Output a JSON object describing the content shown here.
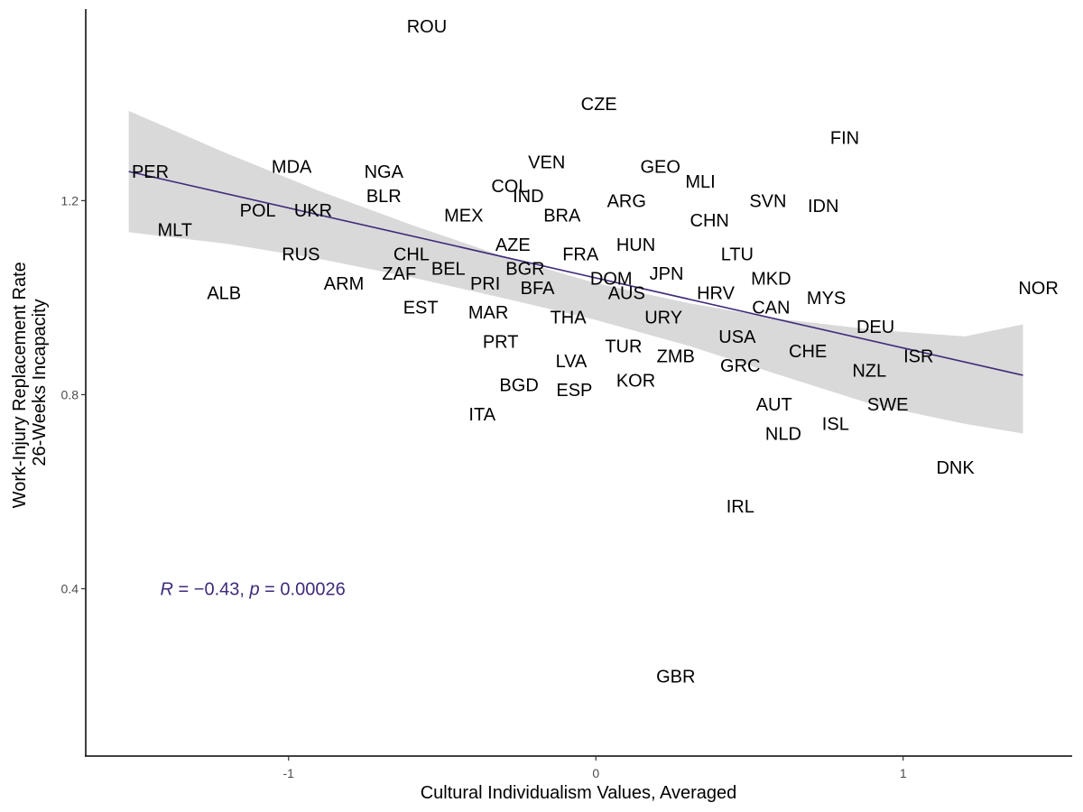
{
  "chart_data": {
    "type": "scatter",
    "xlabel": "Cultural Individualism Values, Averaged",
    "ylabel_lines": [
      "Work-Injury Replacement Rate",
      "26-Weeks Incapacity"
    ],
    "xlim": [
      -1.66,
      1.55
    ],
    "ylim": [
      0.055,
      1.595
    ],
    "xticks": [
      -1,
      0,
      1
    ],
    "xtick_labels": [
      "-1",
      "0",
      "1"
    ],
    "yticks": [
      0.4,
      0.8,
      1.2
    ],
    "ytick_labels": [
      "0.4",
      "0.8",
      "1.2"
    ],
    "grid": false,
    "points": [
      {
        "label": "ROU",
        "x": -0.55,
        "y": 1.56
      },
      {
        "label": "CZE",
        "x": 0.01,
        "y": 1.4
      },
      {
        "label": "FIN",
        "x": 0.81,
        "y": 1.33
      },
      {
        "label": "VEN",
        "x": -0.16,
        "y": 1.28
      },
      {
        "label": "GEO",
        "x": 0.21,
        "y": 1.27
      },
      {
        "label": "MDA",
        "x": -0.99,
        "y": 1.27
      },
      {
        "label": "NGA",
        "x": -0.69,
        "y": 1.26
      },
      {
        "label": "COL",
        "x": -0.28,
        "y": 1.23
      },
      {
        "label": "IND",
        "x": -0.22,
        "y": 1.21
      },
      {
        "label": "ARG",
        "x": 0.1,
        "y": 1.2
      },
      {
        "label": "MLI",
        "x": 0.34,
        "y": 1.24
      },
      {
        "label": "PER",
        "x": -1.45,
        "y": 1.26
      },
      {
        "label": "BLR",
        "x": -0.69,
        "y": 1.21
      },
      {
        "label": "SVN",
        "x": 0.56,
        "y": 1.2
      },
      {
        "label": "MEX",
        "x": -0.43,
        "y": 1.17
      },
      {
        "label": "BRA",
        "x": -0.11,
        "y": 1.17
      },
      {
        "label": "IDN",
        "x": 0.74,
        "y": 1.19
      },
      {
        "label": "POL",
        "x": -1.1,
        "y": 1.18
      },
      {
        "label": "UKR",
        "x": -0.92,
        "y": 1.18
      },
      {
        "label": "CHN",
        "x": 0.37,
        "y": 1.16
      },
      {
        "label": "MLT",
        "x": -1.37,
        "y": 1.14
      },
      {
        "label": "AZE",
        "x": -0.27,
        "y": 1.11
      },
      {
        "label": "HUN",
        "x": 0.13,
        "y": 1.11
      },
      {
        "label": "CHL",
        "x": -0.6,
        "y": 1.09
      },
      {
        "label": "RUS",
        "x": -0.96,
        "y": 1.09
      },
      {
        "label": "FRA",
        "x": -0.05,
        "y": 1.09
      },
      {
        "label": "LTU",
        "x": 0.46,
        "y": 1.09
      },
      {
        "label": "BEL",
        "x": -0.48,
        "y": 1.06
      },
      {
        "label": "BGR",
        "x": -0.23,
        "y": 1.06
      },
      {
        "label": "DOM",
        "x": 0.05,
        "y": 1.04
      },
      {
        "label": "JPN",
        "x": 0.23,
        "y": 1.05
      },
      {
        "label": "MKD",
        "x": 0.57,
        "y": 1.04
      },
      {
        "label": "ZAF",
        "x": -0.64,
        "y": 1.05
      },
      {
        "label": "ARM",
        "x": -0.82,
        "y": 1.03
      },
      {
        "label": "ALB",
        "x": -1.21,
        "y": 1.01
      },
      {
        "label": "PRI",
        "x": -0.36,
        "y": 1.03
      },
      {
        "label": "BFA",
        "x": -0.19,
        "y": 1.02
      },
      {
        "label": "AUS",
        "x": 0.1,
        "y": 1.01
      },
      {
        "label": "HRV",
        "x": 0.39,
        "y": 1.01
      },
      {
        "label": "NOR",
        "x": 1.44,
        "y": 1.02
      },
      {
        "label": "MYS",
        "x": 0.75,
        "y": 1.0
      },
      {
        "label": "EST",
        "x": -0.57,
        "y": 0.98
      },
      {
        "label": "CAN",
        "x": 0.57,
        "y": 0.98
      },
      {
        "label": "MAR",
        "x": -0.35,
        "y": 0.97
      },
      {
        "label": "THA",
        "x": -0.09,
        "y": 0.96
      },
      {
        "label": "URY",
        "x": 0.22,
        "y": 0.96
      },
      {
        "label": "DEU",
        "x": 0.91,
        "y": 0.94
      },
      {
        "label": "USA",
        "x": 0.46,
        "y": 0.92
      },
      {
        "label": "PRT",
        "x": -0.31,
        "y": 0.91
      },
      {
        "label": "TUR",
        "x": 0.09,
        "y": 0.9
      },
      {
        "label": "CHE",
        "x": 0.69,
        "y": 0.89
      },
      {
        "label": "ISR",
        "x": 1.05,
        "y": 0.88
      },
      {
        "label": "ZMB",
        "x": 0.26,
        "y": 0.88
      },
      {
        "label": "LVA",
        "x": -0.08,
        "y": 0.87
      },
      {
        "label": "GRC",
        "x": 0.47,
        "y": 0.86
      },
      {
        "label": "NZL",
        "x": 0.89,
        "y": 0.85
      },
      {
        "label": "BGD",
        "x": -0.25,
        "y": 0.82
      },
      {
        "label": "KOR",
        "x": 0.13,
        "y": 0.83
      },
      {
        "label": "ESP",
        "x": -0.07,
        "y": 0.81
      },
      {
        "label": "SWE",
        "x": 0.95,
        "y": 0.78
      },
      {
        "label": "AUT",
        "x": 0.58,
        "y": 0.78
      },
      {
        "label": "ITA",
        "x": -0.37,
        "y": 0.76
      },
      {
        "label": "ISL",
        "x": 0.78,
        "y": 0.74
      },
      {
        "label": "NLD",
        "x": 0.61,
        "y": 0.72
      },
      {
        "label": "DNK",
        "x": 1.17,
        "y": 0.65
      },
      {
        "label": "IRL",
        "x": 0.47,
        "y": 0.57
      },
      {
        "label": "GBR",
        "x": 0.26,
        "y": 0.22
      }
    ],
    "regression_line": {
      "x": [
        -1.52,
        1.39
      ],
      "y": [
        1.26,
        0.84
      ],
      "color": "#3F2A7A"
    },
    "confidence_band": {
      "x": [
        -1.52,
        -1.2,
        -0.9,
        -0.6,
        -0.3,
        0.0,
        0.3,
        0.6,
        0.9,
        1.2,
        1.39
      ],
      "upper": [
        1.385,
        1.297,
        1.22,
        1.15,
        1.085,
        1.03,
        0.989,
        0.956,
        0.934,
        0.92,
        0.945
      ],
      "lower": [
        1.135,
        1.111,
        1.08,
        1.042,
        0.999,
        0.954,
        0.901,
        0.84,
        0.78,
        0.74,
        0.72
      ],
      "color": "#D9D9D9"
    },
    "annotation": {
      "r_symbol": "R",
      "r_text": " = −0.43, ",
      "p_symbol": "p",
      "p_text": " = 0.00026",
      "x": -1.4,
      "y": 0.4,
      "color": "#3F2A7A"
    }
  }
}
